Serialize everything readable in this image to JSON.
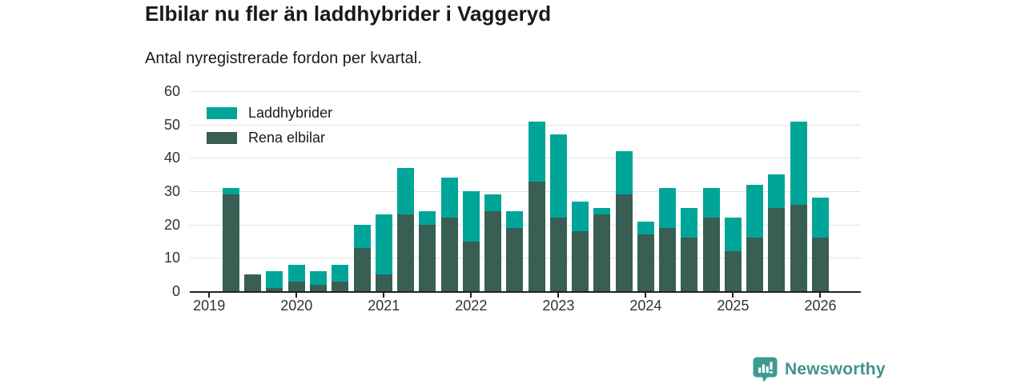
{
  "header": {
    "title": "Elbilar nu fler än laddhybrider i Vaggeryd",
    "subtitle": "Antal nyregistrerade fordon per kvartal."
  },
  "footer": {
    "brand": "Newsworthy"
  },
  "colors": {
    "laddhybrider": "#00a59a",
    "rena_elbilar": "#395e54",
    "axis": "#222222",
    "gridline": "#e3e3e3",
    "tick_text": "#333333",
    "brand": "#3e948b"
  },
  "chart_data": {
    "type": "bar",
    "stacked": true,
    "title": "Elbilar nu fler än laddhybrider i Vaggeryd",
    "subtitle": "Antal nyregistrerade fordon per kvartal.",
    "grid": true,
    "legend_position": "top-left",
    "ylim": [
      0,
      60
    ],
    "yticks": [
      0,
      10,
      20,
      30,
      40,
      50,
      60
    ],
    "x_quarters": [
      "2019Q1",
      "2019Q2",
      "2019Q3",
      "2019Q4",
      "2020Q1",
      "2020Q2",
      "2020Q3",
      "2020Q4",
      "2021Q1",
      "2021Q2",
      "2021Q3",
      "2021Q4",
      "2022Q1",
      "2022Q2",
      "2022Q3",
      "2022Q4",
      "2023Q1",
      "2023Q2",
      "2023Q3",
      "2023Q4",
      "2024Q1",
      "2024Q2",
      "2024Q3",
      "2024Q4",
      "2025Q1",
      "2025Q2",
      "2025Q3",
      "2025Q4",
      "2026Q1"
    ],
    "xtick_years": [
      2019,
      2020,
      2021,
      2022,
      2023,
      2024,
      2025,
      2026
    ],
    "series": [
      {
        "name": "Laddhybrider",
        "color": "#00a59a",
        "stack": "top",
        "values": [
          0,
          2,
          0,
          5,
          5,
          4,
          5,
          7,
          18,
          14,
          4,
          12,
          15,
          5,
          5,
          18,
          25,
          9,
          2,
          13,
          4,
          12,
          9,
          9,
          10,
          16,
          10,
          25,
          12
        ]
      },
      {
        "name": "Rena elbilar",
        "color": "#395e54",
        "stack": "bottom",
        "values": [
          0,
          29,
          5,
          1,
          3,
          2,
          3,
          13,
          5,
          23,
          20,
          22,
          15,
          24,
          19,
          33,
          22,
          18,
          23,
          29,
          17,
          19,
          16,
          22,
          12,
          16,
          25,
          26,
          16
        ]
      }
    ],
    "totals": [
      0,
      31,
      5,
      6,
      8,
      6,
      8,
      20,
      23,
      37,
      24,
      34,
      30,
      29,
      24,
      51,
      47,
      27,
      25,
      42,
      21,
      31,
      25,
      31,
      22,
      32,
      35,
      51,
      28
    ]
  }
}
